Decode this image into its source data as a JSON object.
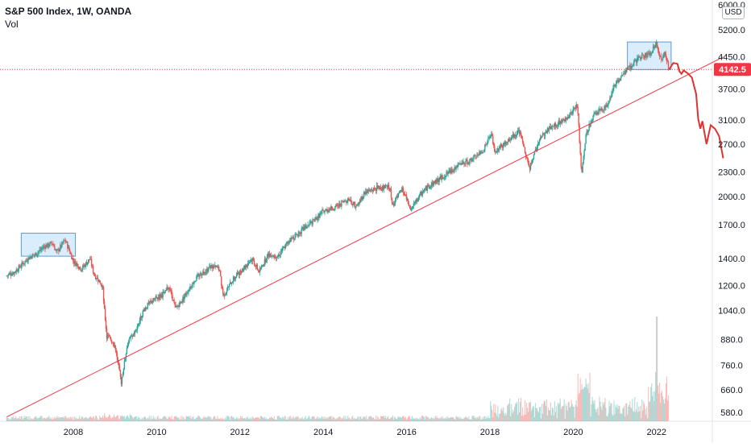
{
  "legend": {
    "title": "S&P 500 Index, 1W, OANDA",
    "vol_label": "Vol"
  },
  "unit_label": "USD",
  "price_tag": "4142.5",
  "colors": {
    "up": "#26a69a",
    "down": "#ef5350",
    "trendline": "#f23645",
    "projection": "#e03131",
    "box_fill": "#bbdefb",
    "box_stroke": "#5b9bd5",
    "price_line": "#f23645"
  },
  "chart_data": {
    "type": "line",
    "title": "S&P 500 Index, 1W, OANDA",
    "x_axis": {
      "ticks": [
        "2008",
        "2010",
        "2012",
        "2014",
        "2016",
        "2018",
        "2020",
        "2022"
      ]
    },
    "y_axis": {
      "scale": "log",
      "ticks": [
        "6000.0",
        "5200.0",
        "4450.0",
        "4142.5",
        "3700.0",
        "3100.0",
        "2700.0",
        "2300.0",
        "2000.0",
        "1700.0",
        "1400.0",
        "1200.0",
        "1040.0",
        "880.0",
        "760.0",
        "660.0",
        "580.0"
      ],
      "range": [
        560,
        6200
      ]
    },
    "series": [
      {
        "type": "candlestick-weekly",
        "path": [
          [
            2006.4,
            1270
          ],
          [
            2006.6,
            1300
          ],
          [
            2006.9,
            1400
          ],
          [
            2007.1,
            1440
          ],
          [
            2007.3,
            1500
          ],
          [
            2007.5,
            1530
          ],
          [
            2007.6,
            1450
          ],
          [
            2007.8,
            1560
          ],
          [
            2007.9,
            1470
          ],
          [
            2008.0,
            1380
          ],
          [
            2008.2,
            1320
          ],
          [
            2008.4,
            1400
          ],
          [
            2008.5,
            1280
          ],
          [
            2008.7,
            1200
          ],
          [
            2008.8,
            900
          ],
          [
            2008.9,
            880
          ],
          [
            2009.0,
            850
          ],
          [
            2009.15,
            690
          ],
          [
            2009.3,
            860
          ],
          [
            2009.5,
            930
          ],
          [
            2009.7,
            1050
          ],
          [
            2009.9,
            1100
          ],
          [
            2010.2,
            1150
          ],
          [
            2010.3,
            1200
          ],
          [
            2010.45,
            1050
          ],
          [
            2010.6,
            1100
          ],
          [
            2010.8,
            1190
          ],
          [
            2011.0,
            1270
          ],
          [
            2011.3,
            1340
          ],
          [
            2011.5,
            1320
          ],
          [
            2011.6,
            1130
          ],
          [
            2011.8,
            1230
          ],
          [
            2012.0,
            1300
          ],
          [
            2012.3,
            1400
          ],
          [
            2012.45,
            1300
          ],
          [
            2012.7,
            1440
          ],
          [
            2012.9,
            1420
          ],
          [
            2013.2,
            1560
          ],
          [
            2013.5,
            1650
          ],
          [
            2013.8,
            1750
          ],
          [
            2014.0,
            1840
          ],
          [
            2014.3,
            1880
          ],
          [
            2014.6,
            1970
          ],
          [
            2014.8,
            1890
          ],
          [
            2015.0,
            2050
          ],
          [
            2015.3,
            2100
          ],
          [
            2015.6,
            2110
          ],
          [
            2015.65,
            1900
          ],
          [
            2015.9,
            2080
          ],
          [
            2016.1,
            1850
          ],
          [
            2016.4,
            2070
          ],
          [
            2016.7,
            2180
          ],
          [
            2016.9,
            2250
          ],
          [
            2017.2,
            2370
          ],
          [
            2017.5,
            2450
          ],
          [
            2017.8,
            2570
          ],
          [
            2018.05,
            2870
          ],
          [
            2018.1,
            2600
          ],
          [
            2018.4,
            2720
          ],
          [
            2018.7,
            2920
          ],
          [
            2018.95,
            2350
          ],
          [
            2019.2,
            2800
          ],
          [
            2019.5,
            3000
          ],
          [
            2019.8,
            3100
          ],
          [
            2020.1,
            3380
          ],
          [
            2020.2,
            2240
          ],
          [
            2020.3,
            2850
          ],
          [
            2020.5,
            3200
          ],
          [
            2020.8,
            3350
          ],
          [
            2021.0,
            3800
          ],
          [
            2021.3,
            4150
          ],
          [
            2021.6,
            4450
          ],
          [
            2021.85,
            4550
          ],
          [
            2022.0,
            4790
          ],
          [
            2022.1,
            4400
          ],
          [
            2022.2,
            4550
          ],
          [
            2022.3,
            4140
          ]
        ]
      },
      {
        "type": "projection",
        "path": [
          [
            2022.3,
            4140
          ],
          [
            2022.4,
            4300
          ],
          [
            2022.5,
            4280
          ],
          [
            2022.55,
            4100
          ],
          [
            2022.6,
            4040
          ],
          [
            2022.65,
            4120
          ],
          [
            2022.75,
            4050
          ],
          [
            2022.85,
            3950
          ],
          [
            2022.95,
            3600
          ],
          [
            2023.0,
            3120
          ],
          [
            2023.05,
            2950
          ],
          [
            2023.1,
            3080
          ],
          [
            2023.2,
            2700
          ],
          [
            2023.3,
            3010
          ],
          [
            2023.4,
            2950
          ],
          [
            2023.5,
            2830
          ],
          [
            2023.6,
            2490
          ]
        ]
      },
      {
        "type": "trendline",
        "path": [
          [
            2006.4,
            565
          ],
          [
            2023.6,
            4450
          ]
        ]
      }
    ],
    "annotations": [
      {
        "type": "box",
        "x": [
          2006.75,
          2008.05
        ],
        "y": [
          1420,
          1620
        ]
      },
      {
        "type": "box",
        "x": [
          2021.3,
          2022.35
        ],
        "y": [
          4140,
          4850
        ]
      }
    ],
    "volume": {
      "note": "Weekly volume bars along the bottom; highest spike near 2022.0"
    }
  }
}
